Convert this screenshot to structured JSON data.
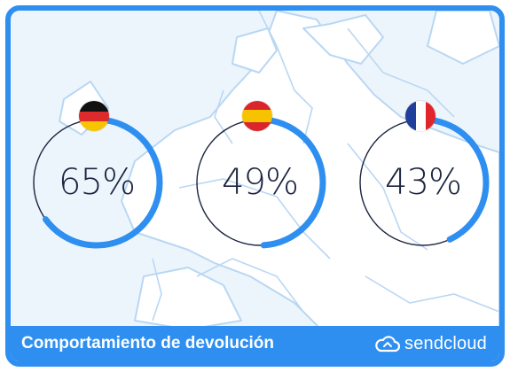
{
  "stats": [
    {
      "country_flag": "germany-flag",
      "percent_label": "65%",
      "value": 65
    },
    {
      "country_flag": "spain-flag",
      "percent_label": "49%",
      "value": 49
    },
    {
      "country_flag": "france-flag",
      "percent_label": "43%",
      "value": 43
    }
  ],
  "footer": {
    "title": "Comportamiento de devolución",
    "brand_name": "sendcloud",
    "brand_icon": "cloud-icon"
  },
  "colors": {
    "accent": "#2e8ff0",
    "ring_track": "#1b2440",
    "background": "#edf5fc",
    "map_land": "#ffffff",
    "map_border": "#b9d7f3"
  }
}
